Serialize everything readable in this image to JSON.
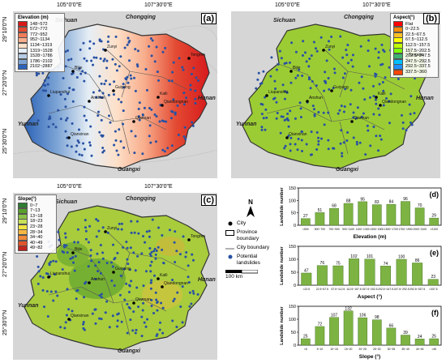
{
  "coords": {
    "lon1": "105°0'0\"E",
    "lon2": "107°30'0\"E",
    "lat1": "29°10'0\"N",
    "lat2": "27°20'0\"N",
    "lat3": "25°30'0\"N"
  },
  "regions": {
    "sichuan": "Sichuan",
    "chongqing": "Chongqing",
    "hunan": "Hunan",
    "yunnan": "Yunnan",
    "guangxi": "Guangxi"
  },
  "cities": [
    "Zunyi",
    "Tongren",
    "Bijie",
    "Guiyang",
    "Anshun",
    "Kaili",
    "Qiandongnan",
    "Qiannan",
    "Liupanshui",
    "Qianxinan"
  ],
  "panels": {
    "a": {
      "label": "(a)",
      "legend_title": "Elevation (m)",
      "legend": [
        {
          "label": "148~572",
          "color": "#d7191c"
        },
        {
          "label": "572~772",
          "color": "#e34a33"
        },
        {
          "label": "772~952",
          "color": "#f07c5a"
        },
        {
          "label": "952~1134",
          "color": "#f8ad8c"
        },
        {
          "label": "1134~1319",
          "color": "#fde0c8"
        },
        {
          "label": "1319~1528",
          "color": "#e6eef5"
        },
        {
          "label": "1528~1786",
          "color": "#b7cde6"
        },
        {
          "label": "1786~2102",
          "color": "#7ea5d5"
        },
        {
          "label": "2102~2887",
          "color": "#2c63b8"
        }
      ]
    },
    "b": {
      "label": "(b)",
      "legend_title": "Aspect(°)",
      "legend": [
        {
          "label": "Flat",
          "color": "#ff0000"
        },
        {
          "label": "0~22.5",
          "color": "#ff8c00"
        },
        {
          "label": "22.5~67.5",
          "color": "#ffc125"
        },
        {
          "label": "67.5~112.5",
          "color": "#ffff00"
        },
        {
          "label": "112.5~157.5",
          "color": "#c0ff00"
        },
        {
          "label": "157.5~202.5",
          "color": "#7fff00"
        },
        {
          "label": "202.5~247.5",
          "color": "#3cb371"
        },
        {
          "label": "247.5~292.5",
          "color": "#00bfff"
        },
        {
          "label": "292.5~337.5",
          "color": "#1e90ff"
        },
        {
          "label": "337.5~360",
          "color": "#ff4500"
        }
      ]
    },
    "c": {
      "label": "(c)",
      "legend_title": "Slope(°)",
      "legend": [
        {
          "label": "0~7",
          "color": "#2e7d32"
        },
        {
          "label": "7~13",
          "color": "#5aa02c"
        },
        {
          "label": "13~18",
          "color": "#8bc34a"
        },
        {
          "label": "18~23",
          "color": "#c5e15a"
        },
        {
          "label": "23~28",
          "color": "#f0e442"
        },
        {
          "label": "28~34",
          "color": "#f5b942"
        },
        {
          "label": "34~40",
          "color": "#f08a3a"
        },
        {
          "label": "40~49",
          "color": "#e0552b"
        },
        {
          "label": "49~82",
          "color": "#c2241e"
        }
      ]
    }
  },
  "map_legend": {
    "north": "N",
    "city": "City",
    "province": "Province boundary",
    "city_boundary": "City boundary",
    "landslides": "Potential landslides",
    "scale_value": "100",
    "scale_unit": "km"
  },
  "chart_data": [
    {
      "type": "bar",
      "panel": "(d)",
      "categories": [
        "<500",
        "500~700",
        "700~900",
        "900~1100",
        "1100~1300",
        "1300~1500",
        "1500~1700",
        "1700~1900",
        "1900~2100",
        ">2100"
      ],
      "values": [
        27,
        51,
        68,
        88,
        95,
        83,
        84,
        96,
        70,
        29
      ],
      "xlabel": "Elevation (m)",
      "ylabel": "Landslide number",
      "ylim": [
        0,
        150
      ],
      "yticks": [
        0,
        50,
        100,
        150
      ],
      "bar_color": "#7db343"
    },
    {
      "type": "bar",
      "panel": "(e)",
      "categories": [
        "<22.5",
        "22.5~67.5",
        "67.5~112.5",
        "112.5~157.5",
        "157.5~202.5",
        "202.5~247.5",
        "247.5~292.5",
        "292.5~337.5",
        ">337.5"
      ],
      "values": [
        47,
        76,
        75,
        102,
        101,
        74,
        100,
        86,
        23
      ],
      "xlabel": "Aspect (°)",
      "ylabel": "Landslide number",
      "ylim": [
        0,
        150
      ],
      "yticks": [
        0,
        50,
        100,
        150
      ],
      "bar_color": "#7db343"
    },
    {
      "type": "bar",
      "panel": "(f)",
      "categories": [
        "<5",
        "5~10",
        "10~15",
        "15~20",
        "20~25",
        "25~30",
        "30~35",
        "35~40",
        "40~45",
        ">45"
      ],
      "values": [
        25,
        72,
        107,
        132,
        106,
        98,
        66,
        39,
        24,
        25
      ],
      "xlabel": "Slope (°)",
      "ylabel": "Landslide number",
      "ylim": [
        0,
        150
      ],
      "yticks": [
        0,
        50,
        100,
        150
      ],
      "bar_color": "#7db343"
    }
  ]
}
